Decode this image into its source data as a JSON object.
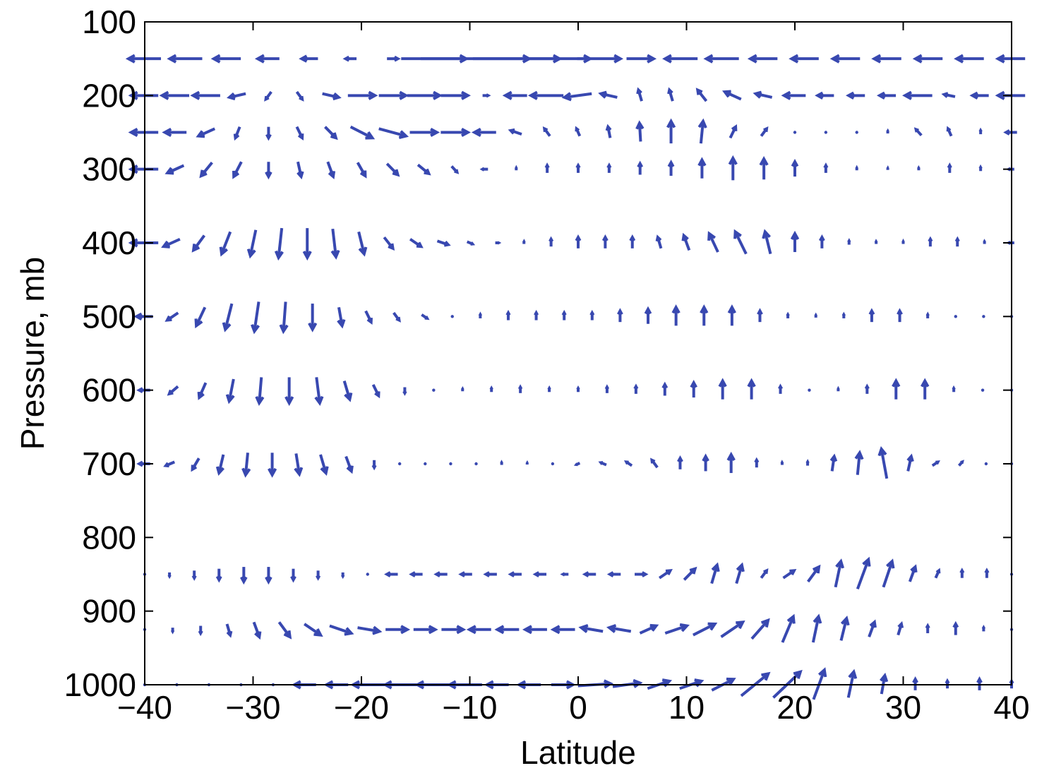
{
  "chart_data": {
    "type": "quiver",
    "xlabel": "Latitude",
    "ylabel": "Pressure, mb",
    "xlim": [
      -40,
      40
    ],
    "ylim": [
      100,
      1000
    ],
    "y_reversed": true,
    "xticks": [
      -40,
      -30,
      -20,
      -10,
      0,
      10,
      20,
      30,
      40
    ],
    "xtick_labels": [
      "−40",
      "−30",
      "−20",
      "−10",
      "0",
      "10",
      "20",
      "30",
      "40"
    ],
    "yticks": [
      100,
      200,
      300,
      400,
      500,
      600,
      700,
      800,
      900,
      1000
    ],
    "ytick_labels": [
      "100",
      "200",
      "300",
      "400",
      "500",
      "600",
      "700",
      "800",
      "900",
      "1000"
    ],
    "arrow_color": "#3848b0",
    "grid": false,
    "arrow_units": "u in degrees latitude, w in mb (upward = positive)",
    "levels": [
      {
        "pressure": 150,
        "u": [
          -3,
          -3,
          -2.5,
          -2,
          -1.5,
          -1,
          1,
          6,
          10,
          8,
          6,
          4,
          2.5,
          -3,
          -3,
          -2.5,
          -2.5,
          -2.5,
          -2.5,
          -2.5,
          -2.5,
          -2.5
        ],
        "w": [
          0,
          0,
          0,
          0,
          0,
          0,
          0,
          0,
          0,
          0,
          0,
          0,
          0,
          0,
          0,
          0,
          0,
          0,
          0,
          0,
          0,
          0
        ]
      },
      {
        "pressure": 200,
        "u": [
          -2.5,
          -2.5,
          -2.5,
          -1.5,
          -0.5,
          0.5,
          1.5,
          2.5,
          2.5,
          3,
          2.5,
          0.5,
          -2,
          -3,
          -2.5,
          -1.5,
          -0.3,
          -0.3,
          -0.8,
          -1.5,
          -1.5,
          -2,
          -1.5,
          -1.5,
          -1.5,
          -2.5,
          -1,
          -1.5,
          -2.5
        ],
        "w": [
          0,
          0,
          0,
          -5,
          -10,
          -10,
          -5,
          0,
          0,
          0,
          0,
          0,
          0,
          0,
          -5,
          5,
          15,
          15,
          15,
          10,
          5,
          0,
          0,
          0,
          0,
          0,
          3,
          0,
          0
        ]
      },
      {
        "pressure": 250,
        "u": [
          -2.5,
          -2,
          -1.5,
          -0.4,
          0,
          0.5,
          1,
          2,
          2.5,
          2.5,
          2.5,
          -2,
          -1,
          -0.5,
          -0.3,
          -0.2,
          -0.1,
          0,
          0.2,
          0.5,
          0.5,
          0,
          0,
          0,
          0,
          -0.5,
          -0.3,
          0,
          -1
        ],
        "w": [
          0,
          0,
          -10,
          -15,
          -15,
          -15,
          -15,
          -15,
          -10,
          0,
          0,
          0,
          5,
          10,
          10,
          15,
          25,
          30,
          30,
          15,
          10,
          0,
          0,
          0,
          3,
          8,
          10,
          5,
          0
        ]
      },
      {
        "pressure": 300,
        "u": [
          -2.5,
          -1.5,
          -1,
          -0.7,
          0,
          0.3,
          0.5,
          0.7,
          1,
          1,
          0.5,
          -0.5,
          0,
          0,
          0,
          0,
          0,
          0,
          0,
          0,
          0,
          0,
          0,
          0,
          0,
          0,
          0,
          0,
          -0.5
        ],
        "w": [
          0,
          -10,
          -18,
          -20,
          -20,
          -20,
          -20,
          -18,
          -15,
          -12,
          -8,
          0,
          3,
          10,
          10,
          10,
          15,
          18,
          25,
          30,
          28,
          20,
          10,
          3,
          2,
          3,
          10,
          5,
          0
        ]
      },
      {
        "pressure": 400,
        "u": [
          -2.5,
          -1.5,
          -1,
          -0.8,
          -0.5,
          -0.3,
          0,
          0.3,
          0.5,
          0.8,
          1,
          1,
          0.5,
          0.3,
          0,
          0,
          0,
          0,
          0,
          -0.3,
          -0.5,
          -0.8,
          -1,
          -0.5,
          0,
          0,
          0,
          0,
          0,
          0,
          0,
          0,
          -0.5
        ],
        "w": [
          0,
          -10,
          -20,
          -30,
          -35,
          -40,
          -40,
          -38,
          -30,
          -15,
          -10,
          -5,
          -3,
          0,
          3,
          10,
          15,
          15,
          15,
          15,
          20,
          25,
          30,
          30,
          25,
          15,
          5,
          3,
          3,
          10,
          10,
          3,
          0
        ]
      },
      {
        "pressure": 500,
        "u": [
          -1.5,
          -1,
          -0.8,
          -0.6,
          -0.4,
          -0.2,
          0,
          0.3,
          0.5,
          0.5,
          0.5,
          0,
          0,
          0,
          0,
          0,
          0,
          0,
          0,
          0,
          0,
          0,
          0,
          0,
          0,
          0,
          0,
          0,
          0,
          0,
          0,
          0
        ],
        "w": [
          0,
          -10,
          -25,
          -35,
          -40,
          -40,
          -35,
          -25,
          -15,
          -10,
          -5,
          0,
          5,
          10,
          10,
          10,
          10,
          15,
          20,
          25,
          25,
          25,
          15,
          5,
          3,
          5,
          15,
          15,
          5,
          0,
          0,
          0
        ]
      },
      {
        "pressure": 600,
        "u": [
          -1,
          -0.8,
          -0.6,
          -0.4,
          -0.2,
          0,
          0.3,
          0.5,
          0.5,
          0,
          0,
          0,
          0,
          0,
          0,
          0,
          0,
          0,
          0,
          0,
          0,
          0,
          0,
          0,
          0,
          0,
          0,
          0,
          0,
          0,
          0
        ],
        "w": [
          0,
          -10,
          -20,
          -30,
          -35,
          -35,
          -35,
          -25,
          -15,
          -8,
          0,
          3,
          5,
          8,
          5,
          5,
          8,
          10,
          15,
          20,
          25,
          25,
          10,
          0,
          3,
          10,
          25,
          25,
          5,
          0,
          0
        ]
      },
      {
        "pressure": 700,
        "u": [
          -1,
          -0.8,
          -0.6,
          -0.4,
          -0.2,
          0,
          0.3,
          0.5,
          0.5,
          0,
          0,
          0,
          0,
          0,
          0,
          0,
          0,
          -0.3,
          -0.5,
          -0.5,
          -0.5,
          0,
          0,
          0,
          0,
          0,
          0,
          0.2,
          0.2,
          -0.5,
          0.3,
          0.5,
          0.3,
          0,
          0
        ],
        "w": [
          0,
          -5,
          -15,
          -25,
          -30,
          -30,
          -28,
          -25,
          -20,
          -10,
          0,
          0,
          0,
          0,
          3,
          2,
          0,
          -2,
          3,
          5,
          10,
          15,
          20,
          25,
          10,
          3,
          5,
          20,
          30,
          40,
          20,
          5,
          5,
          0,
          0
        ]
      },
      {
        "pressure": 850,
        "u": [
          0,
          0,
          0,
          0,
          0,
          0,
          0,
          0,
          0,
          0,
          -1,
          -1,
          -1,
          -1,
          -1,
          -1,
          -1,
          -0.5,
          -1,
          -1,
          1,
          1,
          1,
          0.5,
          0.5,
          0.5,
          1,
          1,
          0.5,
          1,
          0.8,
          0.5,
          0.3,
          0,
          0,
          0
        ],
        "w": [
          0,
          -5,
          -10,
          -15,
          -20,
          -20,
          -15,
          -10,
          -5,
          0,
          0,
          0,
          0,
          0,
          0,
          0,
          0,
          0,
          0,
          0,
          0,
          10,
          15,
          25,
          25,
          10,
          10,
          20,
          35,
          40,
          35,
          20,
          10,
          10,
          10,
          0
        ]
      },
      {
        "pressure": 925,
        "u": [
          0,
          0,
          0,
          0.3,
          0.5,
          1,
          1.5,
          2,
          2,
          2,
          2,
          2,
          -2,
          -2,
          -2,
          -2,
          -2,
          -2,
          1.5,
          2,
          2,
          2,
          1.5,
          1,
          0.5,
          0.5,
          0.5,
          0.3,
          0,
          0,
          0,
          0
        ],
        "w": [
          0,
          -5,
          -10,
          -15,
          -20,
          -20,
          -15,
          -10,
          -5,
          0,
          0,
          0,
          0,
          0,
          0,
          0,
          5,
          5,
          10,
          10,
          15,
          20,
          25,
          35,
          35,
          30,
          20,
          15,
          10,
          15,
          5,
          0
        ]
      },
      {
        "pressure": 1000,
        "u": [
          0,
          0,
          0,
          0,
          0,
          -2,
          -2,
          -3,
          -3,
          -3,
          -3,
          -2,
          -2,
          2,
          3,
          2.5,
          2,
          2,
          2,
          2.5,
          2.5,
          1,
          0.5,
          0.3,
          0,
          0,
          0,
          0
        ],
        "w": [
          0,
          0,
          0,
          0,
          0,
          0,
          0,
          0,
          0,
          0,
          0,
          0,
          0,
          0,
          3,
          5,
          10,
          10,
          15,
          30,
          35,
          40,
          35,
          25,
          15,
          10,
          15,
          10
        ]
      }
    ]
  }
}
